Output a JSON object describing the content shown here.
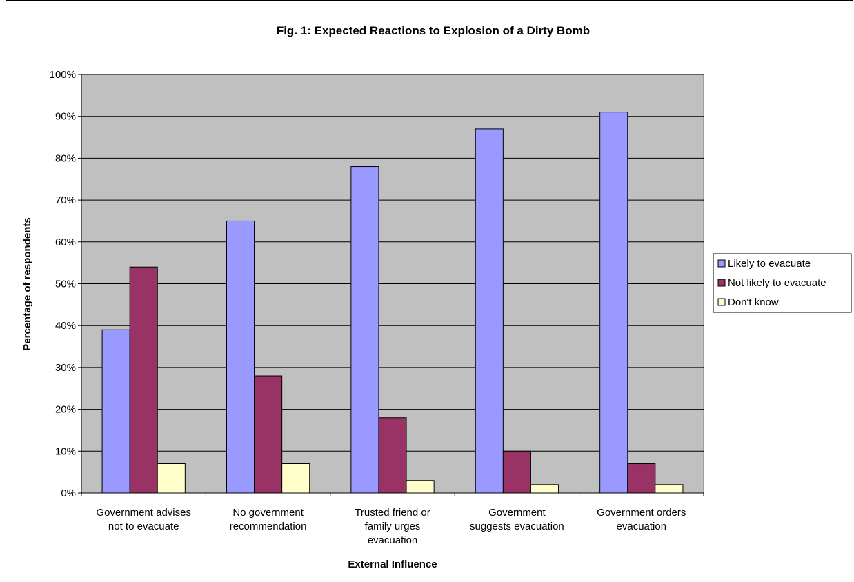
{
  "chart_data": {
    "type": "bar",
    "title": "Fig. 1:  Expected Reactions to Explosion of a Dirty Bomb",
    "xlabel": "External Influence",
    "ylabel": "Percentage of respondents",
    "ylim": [
      0,
      100
    ],
    "y_ticks": [
      "0%",
      "10%",
      "20%",
      "30%",
      "40%",
      "50%",
      "60%",
      "70%",
      "80%",
      "90%",
      "100%"
    ],
    "grid": true,
    "legend_position": "right",
    "categories": [
      [
        "Government advises",
        "not to evacuate"
      ],
      [
        "No government",
        "recommendation"
      ],
      [
        "Trusted friend or",
        "family urges",
        "evacuation"
      ],
      [
        "Government",
        "suggests evacuation"
      ],
      [
        "Government orders",
        "evacuation"
      ]
    ],
    "series": [
      {
        "name": "Likely to evacuate",
        "color": "#9999ff",
        "values": [
          39,
          65,
          78,
          87,
          91
        ]
      },
      {
        "name": "Not likely to evacuate",
        "color": "#993366",
        "values": [
          54,
          28,
          18,
          10,
          7
        ]
      },
      {
        "name": "Don't know",
        "color": "#ffffcc",
        "values": [
          7,
          7,
          3,
          2,
          2
        ]
      }
    ],
    "plot_background": "#c0c0c0"
  }
}
